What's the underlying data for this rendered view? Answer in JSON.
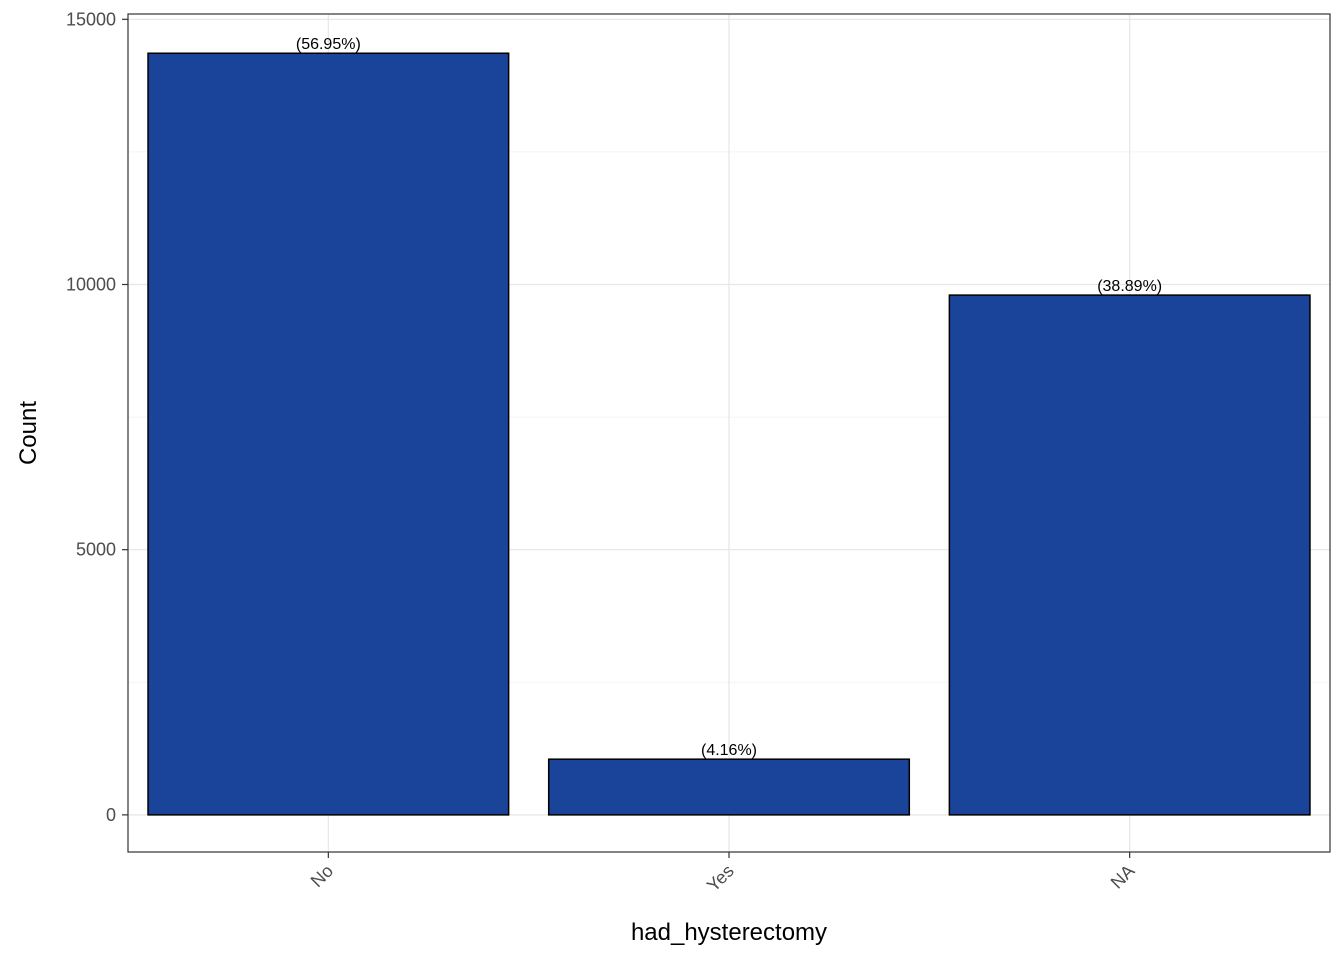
{
  "chart_data": {
    "type": "bar",
    "xlabel": "had_hysterectomy",
    "ylabel": "Count",
    "categories": [
      "No",
      "Yes",
      "NA"
    ],
    "values": [
      14360,
      1050,
      9800
    ],
    "data_labels": [
      "(56.95%)",
      "(4.16%)",
      "(38.89%)"
    ],
    "yticks": [
      0,
      5000,
      10000,
      15000
    ],
    "ytick_labels": [
      "0",
      "5000",
      "10000",
      "15000"
    ],
    "ylim": [
      -700,
      15100
    ],
    "grid": true,
    "bar_color": "#1a4499",
    "bar_outline": "#000000",
    "x_tick_rotation": "45 degrees"
  }
}
